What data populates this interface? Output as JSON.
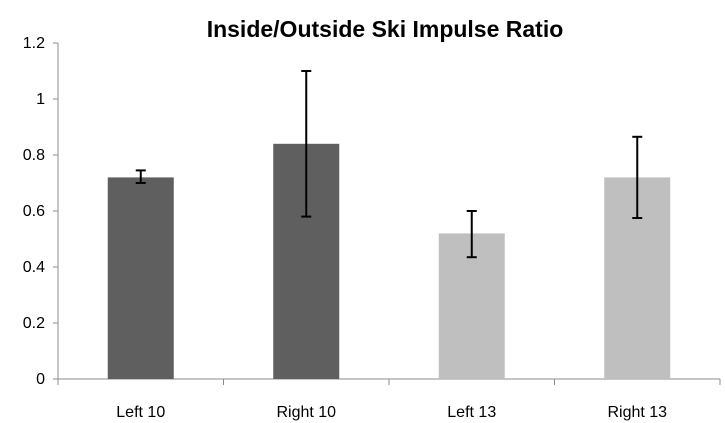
{
  "chart_data": {
    "type": "bar",
    "title": "Inside/Outside Ski Impulse Ratio",
    "xlabel": "",
    "ylabel": "",
    "categories": [
      "Left 10",
      "Right 10",
      "Left 13",
      "Right 13"
    ],
    "values": [
      0.72,
      0.84,
      0.52,
      0.72
    ],
    "error_low": [
      0.7,
      0.58,
      0.435,
      0.575
    ],
    "error_high": [
      0.745,
      1.1,
      0.6,
      0.865
    ],
    "bar_colors": [
      "#5f5f5f",
      "#5f5f5f",
      "#bfbfbf",
      "#bfbfbf"
    ],
    "ylim": [
      0,
      1.2
    ],
    "yticks": [
      "0",
      "0.2",
      "0.4",
      "0.6",
      "0.8",
      "1",
      "1.2"
    ],
    "ytick_values": [
      0,
      0.2,
      0.4,
      0.6,
      0.8,
      1.0,
      1.2
    ],
    "grid": false,
    "legend": "none"
  }
}
